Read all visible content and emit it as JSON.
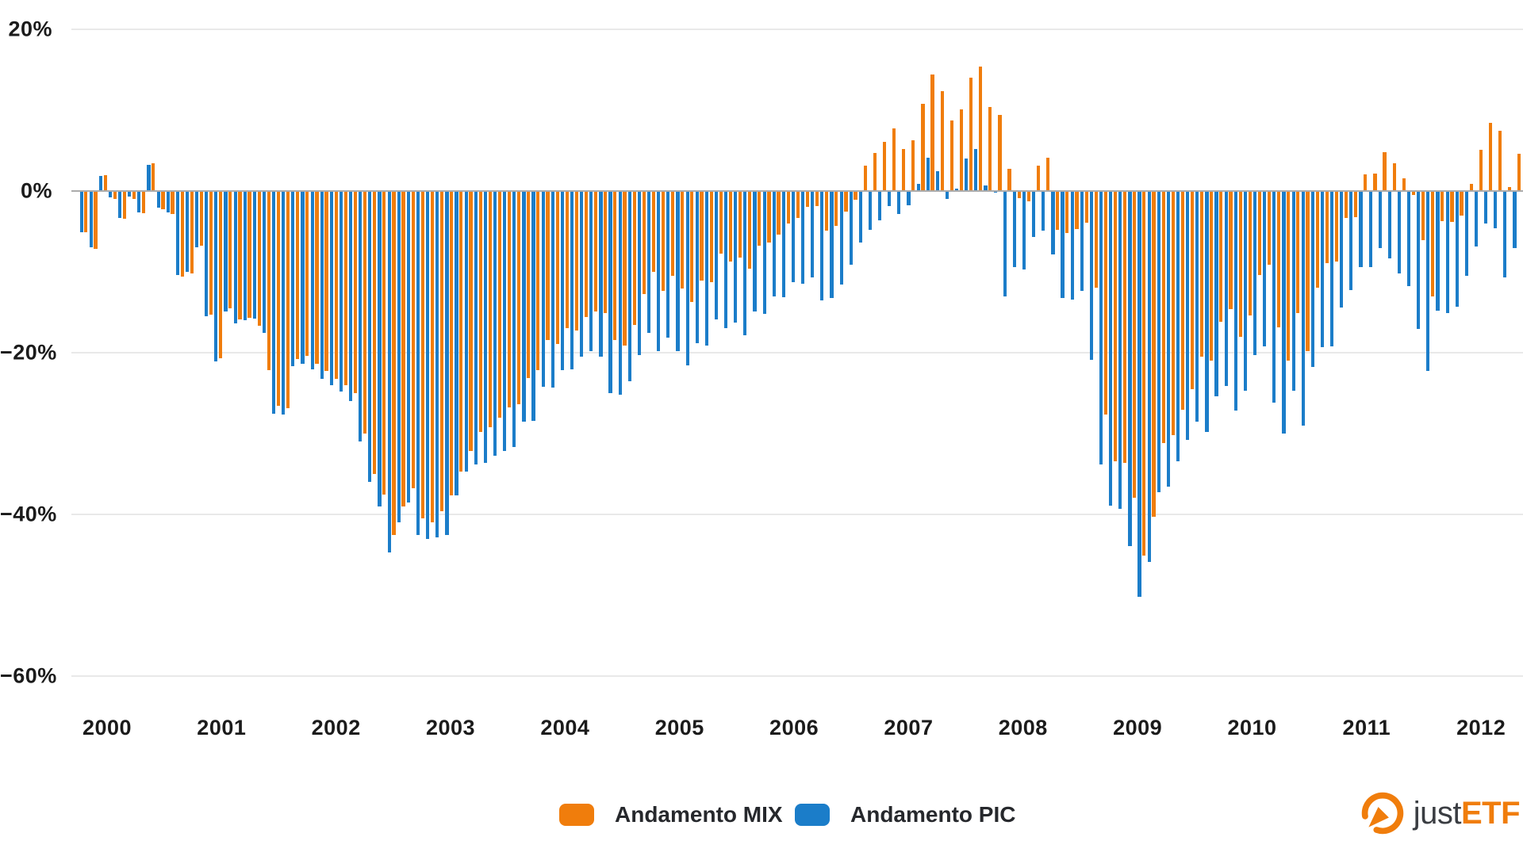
{
  "chart_data": {
    "type": "bar",
    "title": "",
    "unit": "%",
    "grid": true,
    "legend_position": "bottom",
    "ylim": [
      -60,
      20
    ],
    "y_ticks": [
      {
        "label": "20%",
        "value": 20
      },
      {
        "label": "0%",
        "value": 0
      },
      {
        "label": "−20%",
        "value": -20
      },
      {
        "label": "−40%",
        "value": -40
      },
      {
        "label": "−60%",
        "value": -60
      }
    ],
    "years": [
      "2000",
      "2001",
      "2002",
      "2003",
      "2004",
      "2005",
      "2006",
      "2007",
      "2008",
      "2009",
      "2010",
      "2011",
      "2012"
    ],
    "months": [
      "2000-01",
      "2000-02",
      "2000-03",
      "2000-04",
      "2000-05",
      "2000-06",
      "2000-07",
      "2000-08",
      "2000-09",
      "2000-10",
      "2000-11",
      "2000-12",
      "2001-01",
      "2001-02",
      "2001-03",
      "2001-04",
      "2001-05",
      "2001-06",
      "2001-07",
      "2001-08",
      "2001-09",
      "2001-10",
      "2001-11",
      "2001-12",
      "2002-01",
      "2002-02",
      "2002-03",
      "2002-04",
      "2002-05",
      "2002-06",
      "2002-07",
      "2002-08",
      "2002-09",
      "2002-10",
      "2002-11",
      "2002-12",
      "2003-01",
      "2003-02",
      "2003-03",
      "2003-04",
      "2003-05",
      "2003-06",
      "2003-07",
      "2003-08",
      "2003-09",
      "2003-10",
      "2003-11",
      "2003-12",
      "2004-01",
      "2004-02",
      "2004-03",
      "2004-04",
      "2004-05",
      "2004-06",
      "2004-07",
      "2004-08",
      "2004-09",
      "2004-10",
      "2004-11",
      "2004-12",
      "2005-01",
      "2005-02",
      "2005-03",
      "2005-04",
      "2005-05",
      "2005-06",
      "2005-07",
      "2005-08",
      "2005-09",
      "2005-10",
      "2005-11",
      "2005-12",
      "2006-01",
      "2006-02",
      "2006-03",
      "2006-04",
      "2006-05",
      "2006-06",
      "2006-07",
      "2006-08",
      "2006-09",
      "2006-10",
      "2006-11",
      "2006-12",
      "2007-01",
      "2007-02",
      "2007-03",
      "2007-04",
      "2007-05",
      "2007-06",
      "2007-07",
      "2007-08",
      "2007-09",
      "2007-10",
      "2007-11",
      "2007-12",
      "2008-01",
      "2008-02",
      "2008-03",
      "2008-04",
      "2008-05",
      "2008-06",
      "2008-07",
      "2008-08",
      "2008-09",
      "2008-10",
      "2008-11",
      "2008-12",
      "2009-01",
      "2009-02",
      "2009-03",
      "2009-04",
      "2009-05",
      "2009-06",
      "2009-07",
      "2009-08",
      "2009-09",
      "2009-10",
      "2009-11",
      "2009-12",
      "2010-01",
      "2010-02",
      "2010-03",
      "2010-04",
      "2010-05",
      "2010-06",
      "2010-07",
      "2010-08",
      "2010-09",
      "2010-10",
      "2010-11",
      "2010-12",
      "2011-01",
      "2011-02",
      "2011-03",
      "2011-04",
      "2011-05",
      "2011-06",
      "2011-07",
      "2011-08",
      "2011-09",
      "2011-10",
      "2011-11",
      "2011-12",
      "2012-01",
      "2012-02",
      "2012-03",
      "2012-04",
      "2012-05",
      "2012-06"
    ],
    "series": [
      {
        "name": "Andamento MIX",
        "color": "#f07d0c",
        "values": [
          -5.1,
          -7.2,
          2.0,
          -1.0,
          -3.4,
          -1.0,
          -2.7,
          3.4,
          -2.3,
          -2.8,
          -10.6,
          -10.2,
          -6.8,
          -15.3,
          -20.7,
          -14.5,
          -15.9,
          -15.7,
          -16.7,
          -22.2,
          -26.6,
          -26.9,
          -20.8,
          -20.4,
          -21.4,
          -22.3,
          -23.2,
          -24.0,
          -25.0,
          -30.0,
          -35.0,
          -37.5,
          -42.5,
          -39.0,
          -36.8,
          -40.5,
          -41.0,
          -39.6,
          -37.6,
          -34.7,
          -32.2,
          -29.8,
          -29.2,
          -28.0,
          -26.8,
          -26.4,
          -23.1,
          -22.2,
          -18.4,
          -18.9,
          -17.0,
          -17.3,
          -15.6,
          -14.9,
          -15.1,
          -18.4,
          -19.1,
          -16.6,
          -12.7,
          -10.0,
          -12.4,
          -10.5,
          -12.1,
          -13.7,
          -11.1,
          -11.3,
          -7.7,
          -8.7,
          -8.2,
          -9.6,
          -6.8,
          -6.4,
          -5.4,
          -4.0,
          -3.3,
          -2.0,
          -1.9,
          -4.9,
          -4.3,
          -2.5,
          -1.1,
          3.1,
          4.7,
          6.1,
          7.7,
          5.2,
          6.3,
          10.8,
          14.4,
          12.4,
          8.7,
          10.1,
          14.0,
          15.4,
          10.4,
          9.4,
          2.7,
          -0.9,
          -1.3,
          3.1,
          4.1,
          -4.8,
          -5.2,
          -4.7,
          -3.9,
          -12.0,
          -27.6,
          -33.4,
          -33.6,
          -37.9,
          -45.1,
          -40.3,
          -31.2,
          -30.2,
          -27.1,
          -24.5,
          -20.5,
          -21.0,
          -16.2,
          -14.6,
          -18.0,
          -15.4,
          -10.4,
          -9.1,
          -16.9,
          -21.0,
          -15.1,
          -19.8,
          -12.0,
          -8.9,
          -8.7,
          -3.3,
          -3.2,
          2.1,
          2.2,
          4.8,
          3.4,
          1.6,
          -0.5,
          -6.1,
          -13.0,
          -3.7,
          -3.8,
          -3.0,
          0.9,
          5.1,
          8.4,
          7.5,
          0.5,
          4.6
        ]
      },
      {
        "name": "Andamento PIC",
        "color": "#1b7dc9",
        "values": [
          -5.1,
          -7.0,
          1.9,
          -0.8,
          -3.3,
          -0.7,
          -2.6,
          3.2,
          -2.1,
          -2.6,
          -10.4,
          -10.0,
          -7.0,
          -15.5,
          -21.1,
          -14.9,
          -16.4,
          -16.0,
          -15.8,
          -17.5,
          -27.5,
          -27.6,
          -21.7,
          -21.4,
          -22.1,
          -23.2,
          -24.0,
          -24.8,
          -26.0,
          -31.0,
          -36.0,
          -39.0,
          -44.7,
          -41.0,
          -38.5,
          -42.5,
          -43.0,
          -42.8,
          -42.5,
          -37.6,
          -34.7,
          -33.8,
          -33.6,
          -32.7,
          -32.2,
          -31.7,
          -28.5,
          -28.4,
          -24.2,
          -24.3,
          -22.2,
          -22.1,
          -20.5,
          -19.8,
          -20.5,
          -25.0,
          -25.2,
          -23.5,
          -20.3,
          -17.5,
          -19.8,
          -18.1,
          -19.8,
          -21.6,
          -18.8,
          -19.1,
          -15.9,
          -17.0,
          -16.3,
          -17.8,
          -14.9,
          -15.2,
          -13.0,
          -13.1,
          -11.3,
          -11.5,
          -10.7,
          -13.5,
          -13.2,
          -11.6,
          -9.1,
          -6.4,
          -4.8,
          -3.6,
          -1.9,
          -2.8,
          -1.8,
          0.9,
          4.1,
          2.5,
          -1.0,
          0.3,
          4.0,
          5.2,
          0.7,
          -0.2,
          -13.0,
          -9.4,
          -9.7,
          -5.7,
          -4.9,
          -7.8,
          -13.2,
          -13.4,
          -12.4,
          -20.9,
          -33.8,
          -38.9,
          -39.3,
          -43.9,
          -50.2,
          -45.9,
          -37.3,
          -36.6,
          -33.4,
          -30.8,
          -28.5,
          -29.8,
          -25.4,
          -24.1,
          -27.2,
          -24.7,
          -20.3,
          -19.2,
          -26.2,
          -30.0,
          -24.7,
          -29.0,
          -21.8,
          -19.3,
          -19.2,
          -14.4,
          -12.3,
          -9.4,
          -9.4,
          -7.1,
          -8.3,
          -10.2,
          -11.8,
          -17.1,
          -22.3,
          -14.8,
          -15.1,
          -14.3,
          -10.5,
          -6.9,
          -4.0,
          -4.6,
          -10.7,
          -7.1
        ]
      }
    ]
  },
  "legend": {
    "items": [
      {
        "label": "Andamento MIX",
        "color": "#f07d0c"
      },
      {
        "label": "Andamento PIC",
        "color": "#1b7dc9"
      }
    ]
  },
  "logo": {
    "just": "just",
    "etf": "ETF"
  },
  "colors": {
    "grid": "#e9e9e9",
    "zero_line": "#ababab",
    "axis_text": "#1b1b1b"
  }
}
